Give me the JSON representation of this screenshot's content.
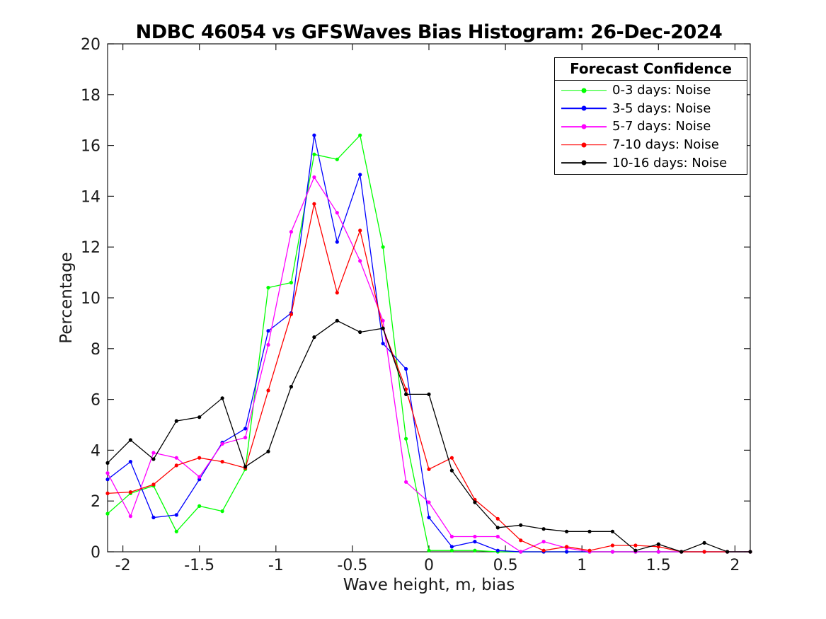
{
  "figure": {
    "background": "#ffffff",
    "axis_color": "#1a1a1a"
  },
  "chart_data": {
    "type": "line",
    "title": "NDBC 46054 vs GFSWaves Bias Histogram: 26-Dec-2024",
    "xlabel": "Wave height, m, bias",
    "ylabel": "Percentage",
    "xlim": [
      -2.1,
      2.1
    ],
    "ylim": [
      0,
      20
    ],
    "grid": false,
    "box": true,
    "tick_direction": "in",
    "xticks": [
      -2,
      -1.5,
      -1,
      -0.5,
      0,
      0.5,
      1,
      1.5,
      2
    ],
    "xtick_labels": [
      "-2",
      "-1.5",
      "-1",
      "-0.5",
      "0",
      "0.5",
      "1",
      "1.5",
      "2"
    ],
    "yticks": [
      0,
      2,
      4,
      6,
      8,
      10,
      12,
      14,
      16,
      18,
      20
    ],
    "ytick_labels": [
      "0",
      "2",
      "4",
      "6",
      "8",
      "10",
      "12",
      "14",
      "16",
      "18",
      "20"
    ],
    "legend": {
      "title": "Forecast Confidence",
      "position": "top-right"
    },
    "marker": "point",
    "x": [
      -2.1,
      -1.95,
      -1.8,
      -1.65,
      -1.5,
      -1.35,
      -1.2,
      -1.05,
      -0.9,
      -0.75,
      -0.6,
      -0.45,
      -0.3,
      -0.15,
      0,
      0.15,
      0.3,
      0.45,
      0.6,
      0.75,
      0.9,
      1.05,
      1.2,
      1.35,
      1.5,
      1.65,
      1.8,
      1.95,
      2.1
    ],
    "series": [
      {
        "id": "0-3-days",
        "label": "0-3 days: Noise",
        "color": "#00ff00",
        "values": [
          1.5,
          2.3,
          2.6,
          0.8,
          1.8,
          1.6,
          3.25,
          10.4,
          10.6,
          15.65,
          15.45,
          16.4,
          12.0,
          4.45,
          0.05,
          0.05,
          0.05,
          0,
          0,
          0,
          0,
          0,
          0,
          0,
          0,
          0,
          0,
          0,
          0
        ]
      },
      {
        "id": "3-5-days",
        "label": "3-5 days: Noise",
        "color": "#0000ff",
        "values": [
          2.85,
          3.55,
          1.35,
          1.45,
          2.85,
          4.3,
          4.85,
          8.7,
          9.4,
          16.4,
          12.2,
          14.85,
          8.2,
          7.2,
          1.35,
          0.2,
          0.4,
          0.05,
          0,
          0,
          0,
          0,
          0,
          0,
          0,
          0,
          0,
          0,
          0
        ]
      },
      {
        "id": "5-7-days",
        "label": "5-7 days: Noise",
        "color": "#ff00ff",
        "values": [
          3.1,
          1.4,
          3.9,
          3.7,
          2.95,
          4.25,
          4.5,
          8.15,
          12.6,
          14.75,
          13.35,
          11.45,
          9.1,
          2.75,
          1.95,
          0.6,
          0.6,
          0.6,
          0,
          0.4,
          0.15,
          0,
          0,
          0,
          0,
          0,
          0,
          0,
          0
        ]
      },
      {
        "id": "7-10-days",
        "label": "7-10 days: Noise",
        "color": "#ff0000",
        "values": [
          2.3,
          2.35,
          2.65,
          3.4,
          3.7,
          3.55,
          3.3,
          6.35,
          9.35,
          13.7,
          10.2,
          12.65,
          8.8,
          6.4,
          3.25,
          3.7,
          2.05,
          1.3,
          0.45,
          0.05,
          0.2,
          0.05,
          0.25,
          0.25,
          0.2,
          0,
          0,
          0,
          0
        ]
      },
      {
        "id": "10-16-days",
        "label": "10-16 days: Noise",
        "color": "#000000",
        "values": [
          3.5,
          4.4,
          3.65,
          5.15,
          5.3,
          6.05,
          3.35,
          3.95,
          6.5,
          8.45,
          9.1,
          8.65,
          8.8,
          6.2,
          6.2,
          3.2,
          1.95,
          0.95,
          1.05,
          0.9,
          0.8,
          0.8,
          0.8,
          0.05,
          0.3,
          0,
          0.35,
          0,
          0
        ]
      }
    ]
  }
}
